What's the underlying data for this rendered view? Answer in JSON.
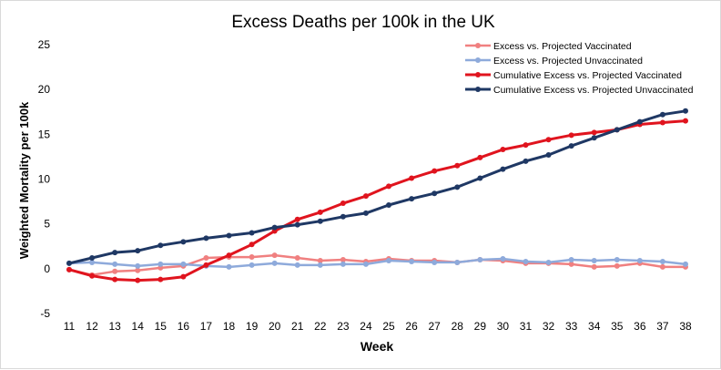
{
  "chart_data": {
    "type": "line",
    "title": "Excess Deaths per 100k in the UK",
    "xlabel": "Week",
    "ylabel": "Weighted Mortality per 100k",
    "ylim": [
      -5,
      25
    ],
    "yticks": [
      -5,
      0,
      5,
      10,
      15,
      20,
      25
    ],
    "grid": false,
    "legend_position": "top-right",
    "categories": [
      11,
      12,
      13,
      14,
      15,
      16,
      17,
      18,
      19,
      20,
      21,
      22,
      23,
      24,
      25,
      26,
      27,
      28,
      29,
      30,
      31,
      32,
      33,
      34,
      35,
      36,
      37,
      38
    ],
    "series": [
      {
        "name": "Excess vs. Projected Vaccinated",
        "color": "#f08080",
        "width": 2.5,
        "values": [
          -0.1,
          -0.7,
          -0.3,
          -0.2,
          0.1,
          0.3,
          1.2,
          1.3,
          1.3,
          1.5,
          1.2,
          0.9,
          1.0,
          0.8,
          1.1,
          0.9,
          0.9,
          0.7,
          1.0,
          0.9,
          0.6,
          0.6,
          0.5,
          0.2,
          0.3,
          0.6,
          0.2,
          0.2
        ]
      },
      {
        "name": "Excess vs. Projected Unvaccinated",
        "color": "#8eaadb",
        "width": 2.5,
        "values": [
          0.6,
          0.7,
          0.5,
          0.3,
          0.5,
          0.5,
          0.3,
          0.2,
          0.4,
          0.6,
          0.4,
          0.4,
          0.5,
          0.5,
          0.9,
          0.8,
          0.7,
          0.7,
          1.0,
          1.1,
          0.8,
          0.7,
          1.0,
          0.9,
          1.0,
          0.9,
          0.8,
          0.5
        ]
      },
      {
        "name": "Cumulative Excess vs. Projected Vaccinated",
        "color": "#e0141e",
        "width": 3,
        "values": [
          -0.1,
          -0.8,
          -1.2,
          -1.3,
          -1.2,
          -0.9,
          0.4,
          1.5,
          2.7,
          4.2,
          5.5,
          6.3,
          7.3,
          8.1,
          9.2,
          10.1,
          10.9,
          11.5,
          12.4,
          13.3,
          13.8,
          14.4,
          14.9,
          15.2,
          15.5,
          16.1,
          16.3,
          16.5
        ]
      },
      {
        "name": "Cumulative Excess vs. Projected Unvaccinated",
        "color": "#1f3864",
        "width": 3,
        "values": [
          0.6,
          1.2,
          1.8,
          2.0,
          2.6,
          3.0,
          3.4,
          3.7,
          4.0,
          4.6,
          4.9,
          5.3,
          5.8,
          6.2,
          7.1,
          7.8,
          8.4,
          9.1,
          10.1,
          11.1,
          12.0,
          12.7,
          13.7,
          14.6,
          15.5,
          16.4,
          17.2,
          17.6
        ]
      }
    ]
  }
}
